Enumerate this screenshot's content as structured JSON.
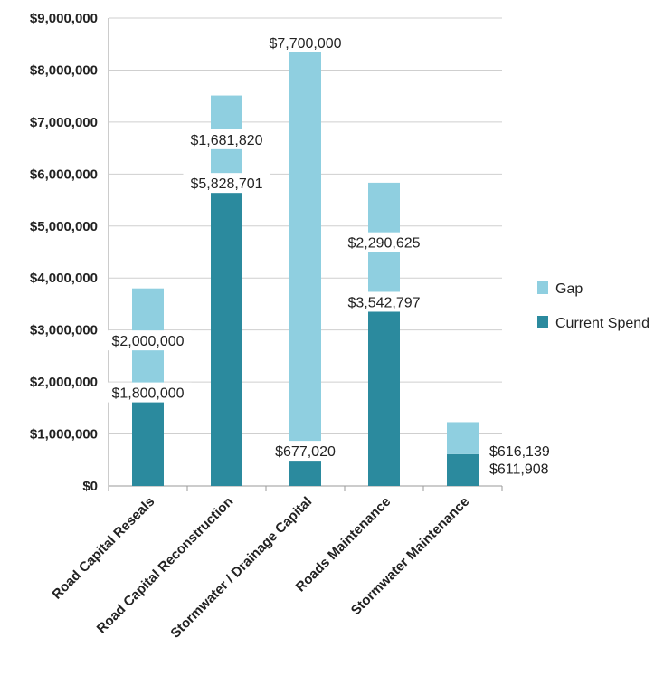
{
  "chart_data": {
    "type": "bar",
    "stacked": true,
    "categories": [
      "Road Capital Reseals",
      "Road Capital Reconstruction",
      "Stormwater / Drainage Capital",
      "Roads Maintenance",
      "Stormwater Maintenance"
    ],
    "series": [
      {
        "name": "Current Spend",
        "color": "#2b8a9e",
        "values": [
          1800000,
          5828701,
          677020,
          3542797,
          611908
        ]
      },
      {
        "name": "Gap",
        "color": "#8fcfe0",
        "values": [
          2000000,
          1681820,
          7700000,
          2290625,
          616139
        ]
      }
    ],
    "data_labels": {
      "Current Spend": [
        "$1,800,000",
        "$5,828,701",
        "$677,020",
        "$3,542,797",
        "$611,908"
      ],
      "Gap": [
        "$2,000,000",
        "$1,681,820",
        "$7,700,000",
        "$2,290,625",
        "$616,139"
      ]
    },
    "yticks": [
      "$0",
      "$1,000,000",
      "$2,000,000",
      "$3,000,000",
      "$4,000,000",
      "$5,000,000",
      "$6,000,000",
      "$7,000,000",
      "$8,000,000",
      "$9,000,000"
    ],
    "ylim": [
      0,
      9000000
    ],
    "legend": {
      "position": "right",
      "items": [
        "Gap",
        "Current Spend"
      ]
    },
    "grid": true,
    "title": "",
    "xlabel": "",
    "ylabel": ""
  }
}
